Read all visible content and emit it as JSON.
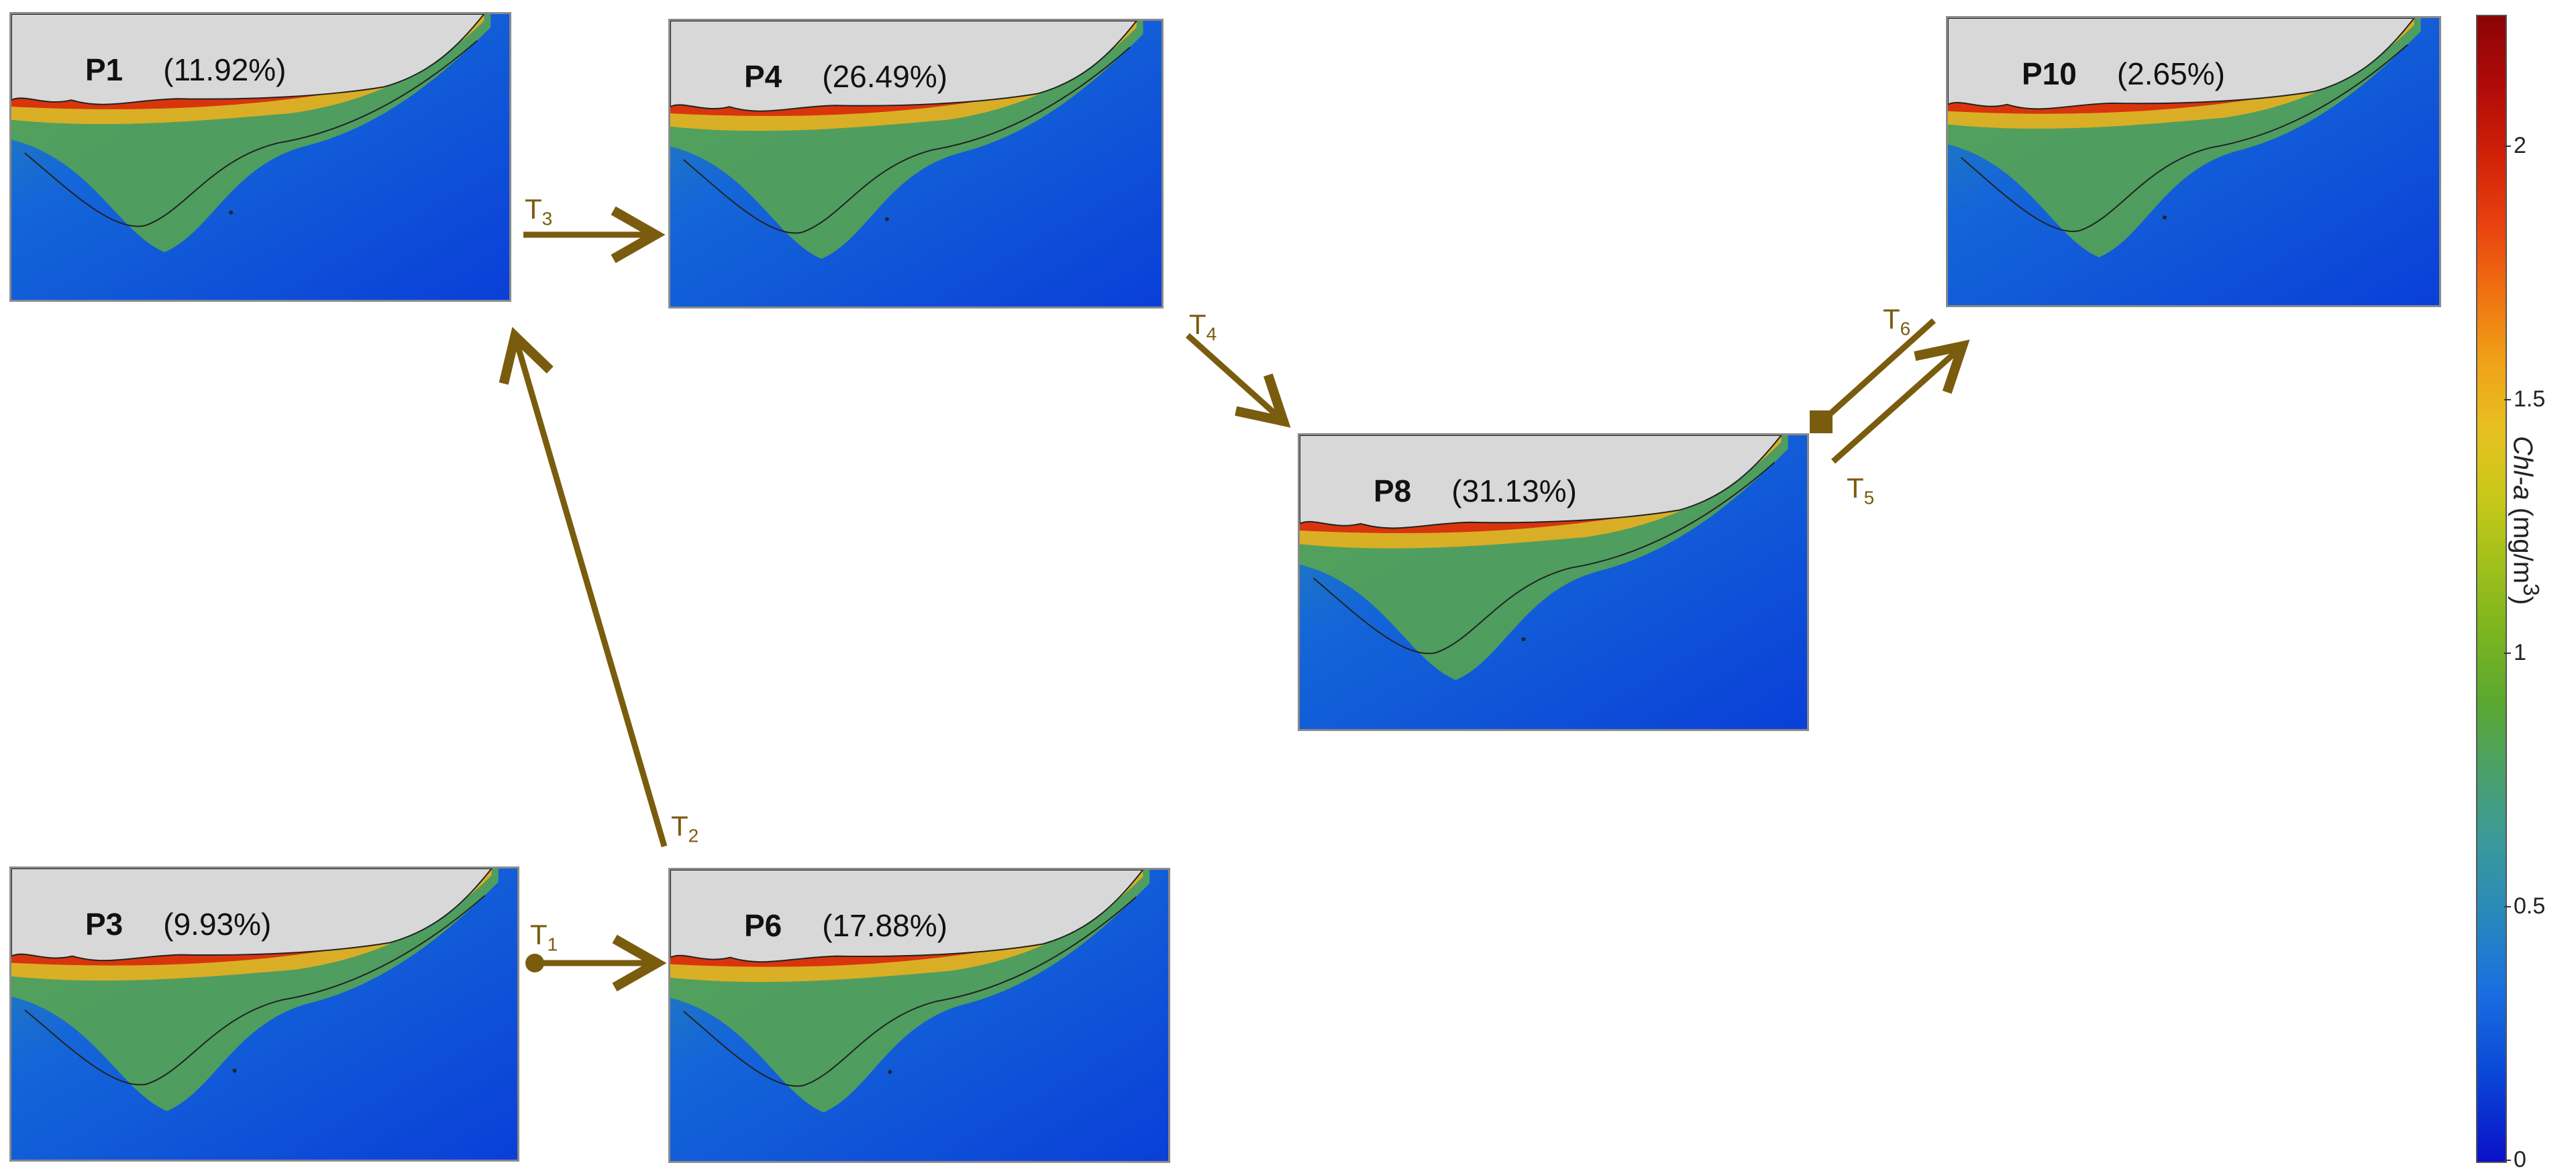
{
  "panels": [
    {
      "id": "P1",
      "name": "P1",
      "percent": "(11.92%)"
    },
    {
      "id": "P4",
      "name": "P4",
      "percent": "(26.49%)"
    },
    {
      "id": "P10",
      "name": "P10",
      "percent": "(2.65%)"
    },
    {
      "id": "P8",
      "name": "P8",
      "percent": "(31.13%)"
    },
    {
      "id": "P3",
      "name": "P3",
      "percent": "(9.93%)"
    },
    {
      "id": "P6",
      "name": "P6",
      "percent": "(17.88%)"
    }
  ],
  "transitions": [
    {
      "id": "T1",
      "letter": "T",
      "sub": "1",
      "from": "P3",
      "to": "P6"
    },
    {
      "id": "T2",
      "letter": "T",
      "sub": "2",
      "from": "P6",
      "to": "P1"
    },
    {
      "id": "T3",
      "letter": "T",
      "sub": "3",
      "from": "P1",
      "to": "P4"
    },
    {
      "id": "T4",
      "letter": "T",
      "sub": "4",
      "from": "P4",
      "to": "P8"
    },
    {
      "id": "T5",
      "letter": "T",
      "sub": "5",
      "from": "P8",
      "to": "P10"
    },
    {
      "id": "T6",
      "letter": "T",
      "sub": "6",
      "from": "P10",
      "to": "P8"
    }
  ],
  "colors": {
    "arrow": "#7a5c0e",
    "land": "#d8d8d8",
    "ocean": "#0a3fd8"
  },
  "colorbar": {
    "title_main": "Chl-a",
    "title_unit": "(mg/m",
    "title_sup": "3",
    "title_close": ")",
    "ticks": [
      "0",
      "0.5",
      "1",
      "1.5",
      "2"
    ],
    "tick_values": [
      0,
      0.5,
      1,
      1.5,
      2
    ],
    "max": 2.26
  }
}
